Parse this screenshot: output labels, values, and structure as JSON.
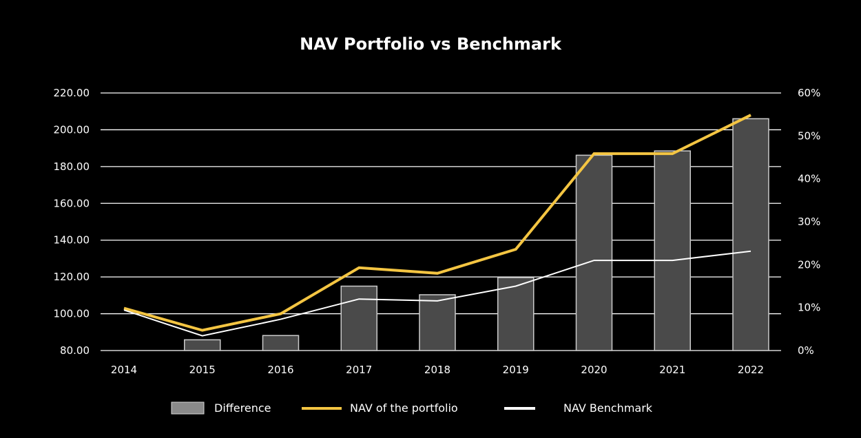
{
  "chart_data": {
    "type": "bar+line",
    "title": "NAV Portfolio vs Benchmark",
    "categories": [
      "2014",
      "2015",
      "2016",
      "2017",
      "2018",
      "2019",
      "2020",
      "2021",
      "2022"
    ],
    "y_left": {
      "min": 80,
      "max": 220,
      "ticks": [
        "80.00",
        "100.00",
        "120.00",
        "140.00",
        "160.00",
        "180.00",
        "200.00",
        "220.00"
      ],
      "tick_values": [
        80,
        100,
        120,
        140,
        160,
        180,
        200,
        220
      ]
    },
    "y_right": {
      "min": 0,
      "max": 60,
      "ticks": [
        "0%",
        "10%",
        "20%",
        "30%",
        "40%",
        "50%",
        "60%"
      ],
      "tick_values": [
        0,
        10,
        20,
        30,
        40,
        50,
        60
      ]
    },
    "grid": true,
    "legend_position": "bottom",
    "series": [
      {
        "name": "Difference",
        "kind": "bar",
        "axis": "right",
        "unit": "%",
        "values": [
          0,
          2.5,
          3.5,
          15,
          13,
          17,
          45.5,
          46.5,
          54
        ],
        "fill": "#4a4a4a",
        "stroke": "#cccccc"
      },
      {
        "name": "NAV of the portfolio",
        "kind": "line",
        "axis": "left",
        "values": [
          103,
          91,
          100,
          125,
          122,
          135,
          187,
          187,
          208
        ],
        "color": "#f4c542"
      },
      {
        "name": "NAV Benchmark",
        "kind": "line",
        "axis": "left",
        "values": [
          102,
          88,
          97,
          108,
          107,
          115,
          129,
          129,
          134
        ],
        "color": "#ffffff"
      }
    ]
  }
}
